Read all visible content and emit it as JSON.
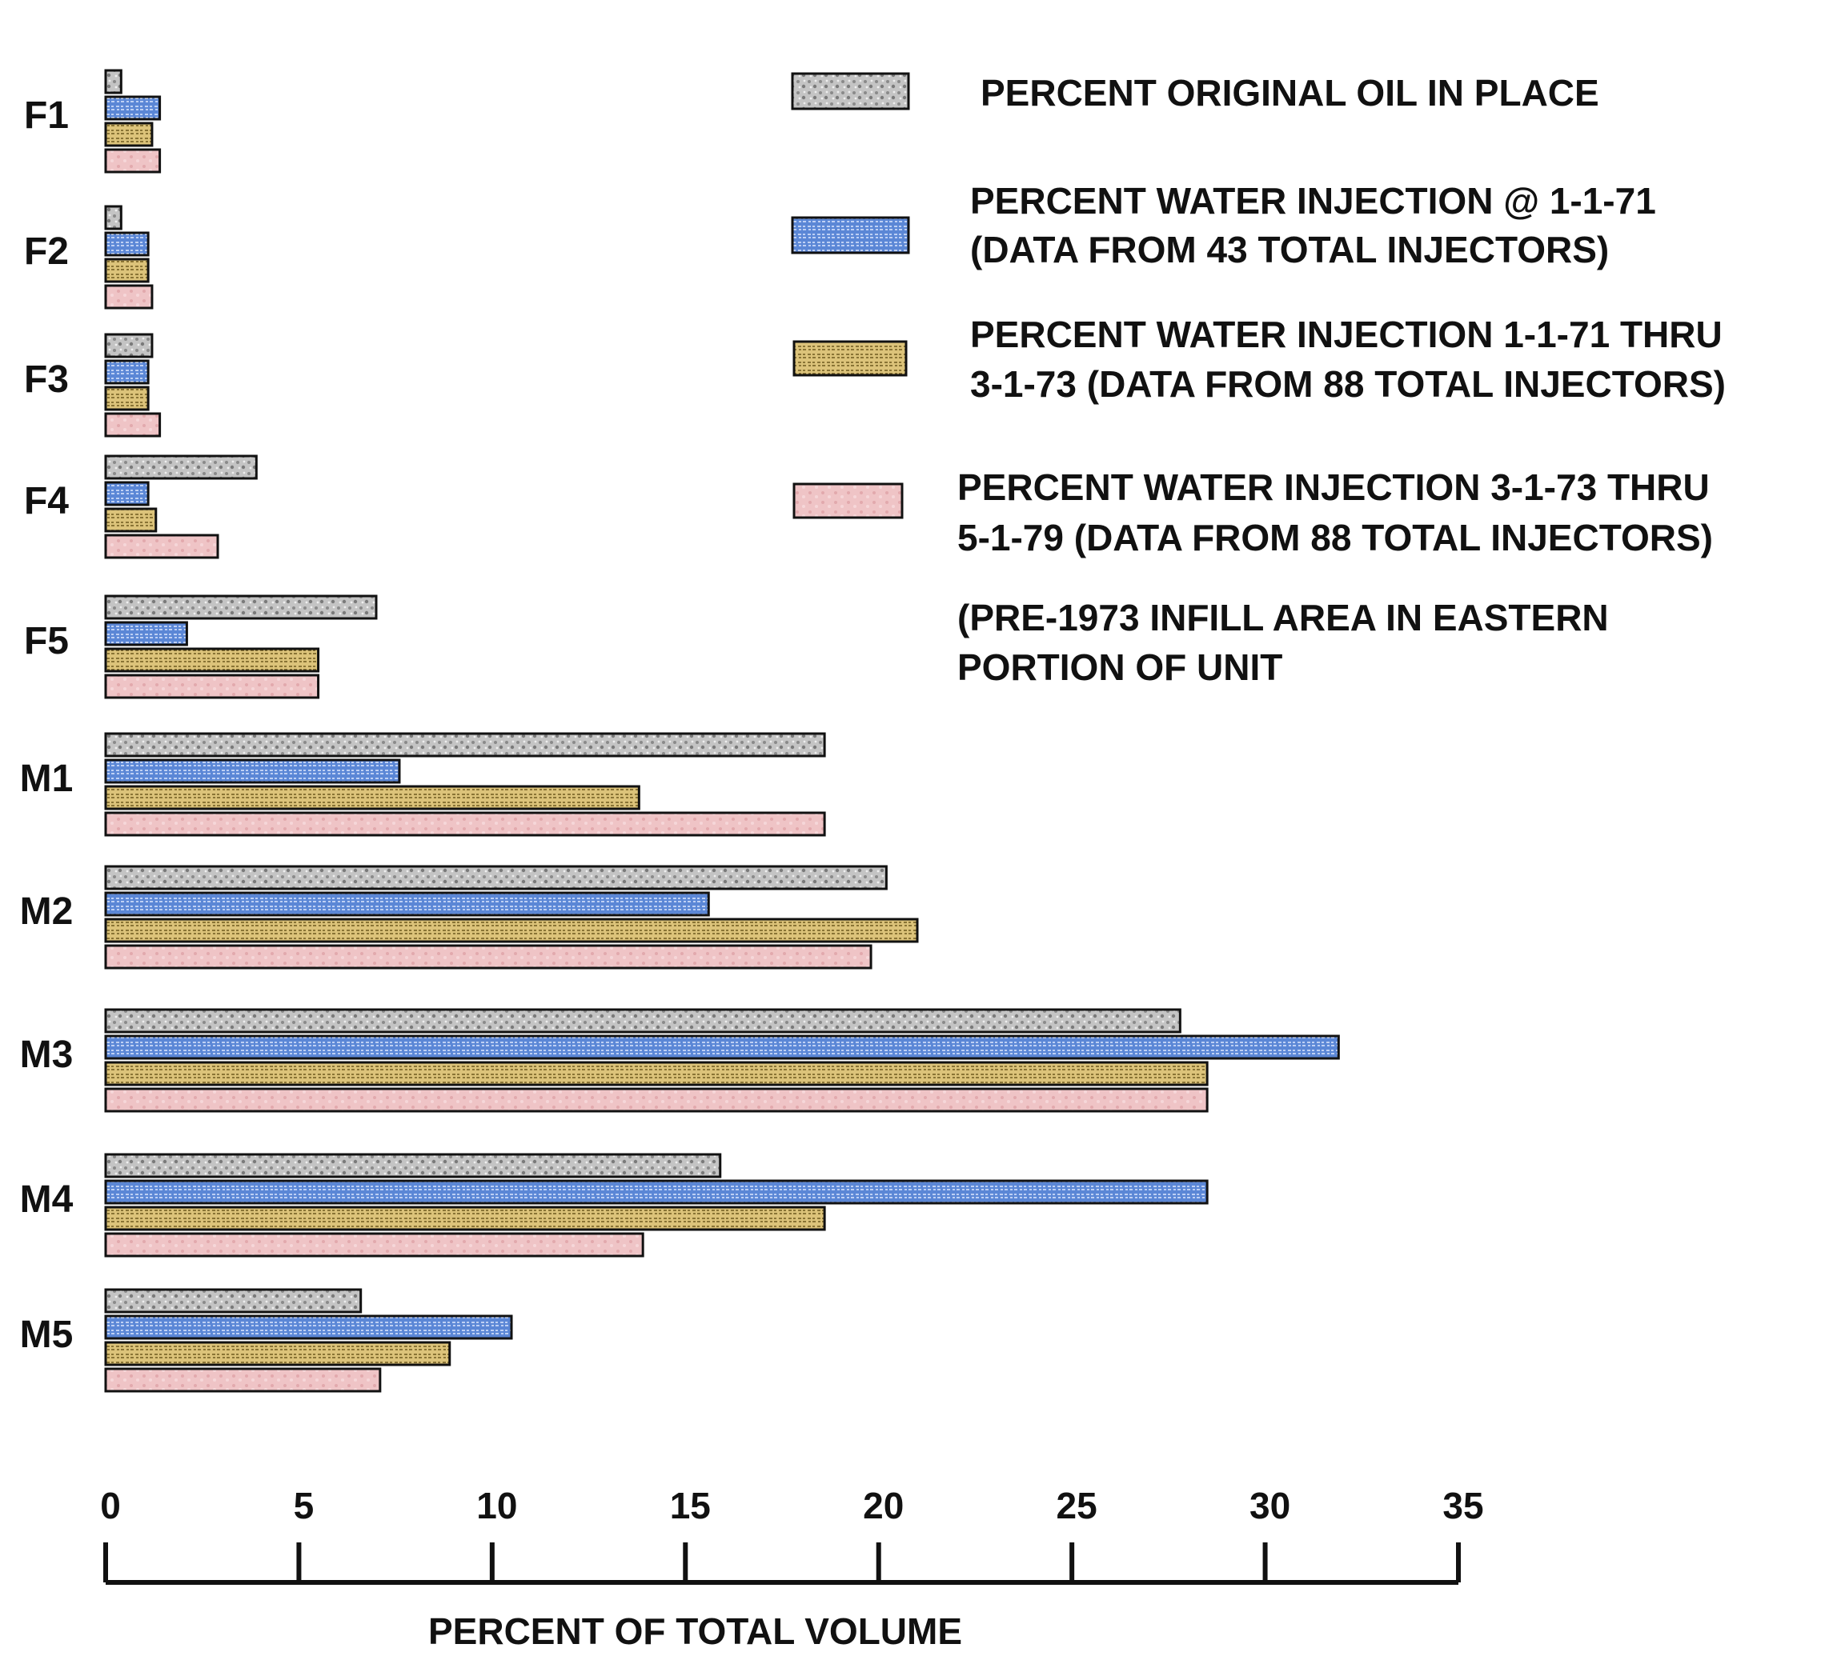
{
  "chart_data": {
    "type": "bar",
    "orientation": "horizontal",
    "categories": [
      "F1",
      "F2",
      "F3",
      "F4",
      "F5",
      "M1",
      "M2",
      "M3",
      "M4",
      "M5"
    ],
    "series": [
      {
        "name": "PERCENT ORIGINAL OIL IN PLACE",
        "color": "#c4c4c4",
        "values": [
          0.4,
          0.4,
          1.2,
          3.9,
          7.0,
          18.6,
          20.2,
          27.8,
          15.9,
          6.6
        ]
      },
      {
        "name": "PERCENT WATER INJECTION @ 1-1-71 (DATA FROM 43 TOTAL INJECTORS)",
        "color": "#5b87d6",
        "values": [
          1.4,
          1.1,
          1.1,
          1.1,
          2.1,
          7.6,
          15.6,
          31.9,
          28.5,
          10.5
        ]
      },
      {
        "name": "PERCENT WATER INJECTION 1-1-71 THRU 3-1-73 (DATA FROM 88 TOTAL INJECTORS)",
        "color": "#dcc37a",
        "values": [
          1.2,
          1.1,
          1.1,
          1.3,
          5.5,
          13.8,
          21.0,
          28.5,
          18.6,
          8.9
        ]
      },
      {
        "name": "PERCENT WATER INJECTION 3-1-73 THRU 5-1-79 (DATA FROM 88 TOTAL INJECTORS)",
        "color": "#efc4c6",
        "values": [
          1.4,
          1.2,
          1.4,
          2.9,
          5.5,
          18.6,
          19.8,
          28.5,
          13.9,
          7.1
        ]
      }
    ],
    "note": "(PRE-1973 INFILL AREA IN EASTERN PORTION OF UNIT",
    "xlabel": "PERCENT OF TOTAL VOLUME",
    "xticks": [
      "0",
      "5",
      "10",
      "15",
      "20",
      "25",
      "30",
      "35"
    ],
    "xlim": [
      0,
      35
    ],
    "grid": false,
    "legend_position": "top-right"
  }
}
